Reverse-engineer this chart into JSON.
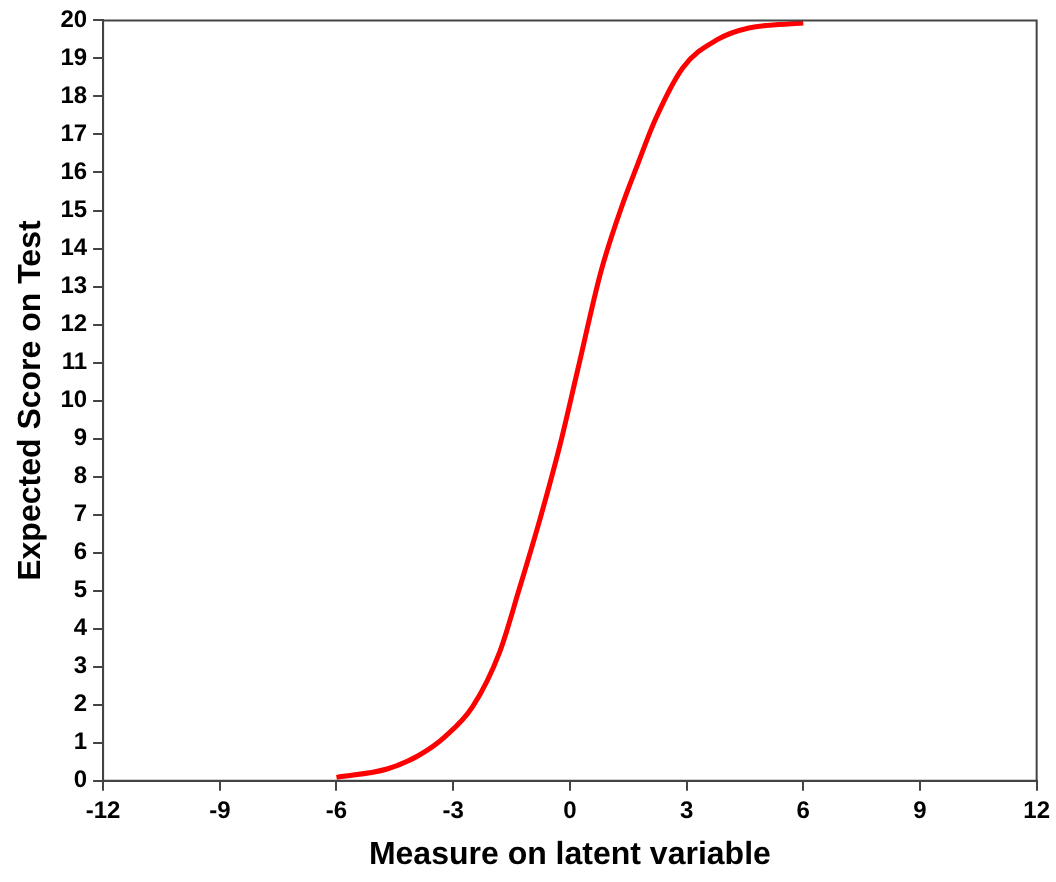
{
  "chart_data": {
    "type": "line",
    "xlabel": "Measure on latent variable",
    "ylabel": "Expected Score on Test",
    "xlim": [
      -12,
      12
    ],
    "xticks": [
      -12,
      -9,
      -6,
      -3,
      0,
      3,
      6,
      9,
      12
    ],
    "ylim": [
      0,
      20
    ],
    "yticks": [
      0,
      1,
      2,
      3,
      4,
      5,
      6,
      7,
      8,
      9,
      10,
      11,
      12,
      13,
      14,
      15,
      16,
      17,
      18,
      19,
      20
    ],
    "grid": false,
    "legend": false,
    "marker": "none",
    "line_style": "solid",
    "series": [
      {
        "color": "#ff0000",
        "x": [
          -6,
          -4.7,
          -3.9,
          -3.2,
          -2.5,
          -1.8,
          -1.3,
          -0.75,
          -0.25,
          0.2,
          0.8,
          1.35,
          1.7,
          2.2,
          2.9,
          3.8,
          4.6,
          6
        ],
        "values": [
          0.09,
          0.31,
          0.66,
          1.17,
          1.95,
          3.4,
          5.05,
          6.95,
          8.85,
          10.8,
          13.4,
          15.15,
          16.1,
          17.4,
          18.75,
          19.5,
          19.8,
          19.93
        ]
      }
    ]
  }
}
